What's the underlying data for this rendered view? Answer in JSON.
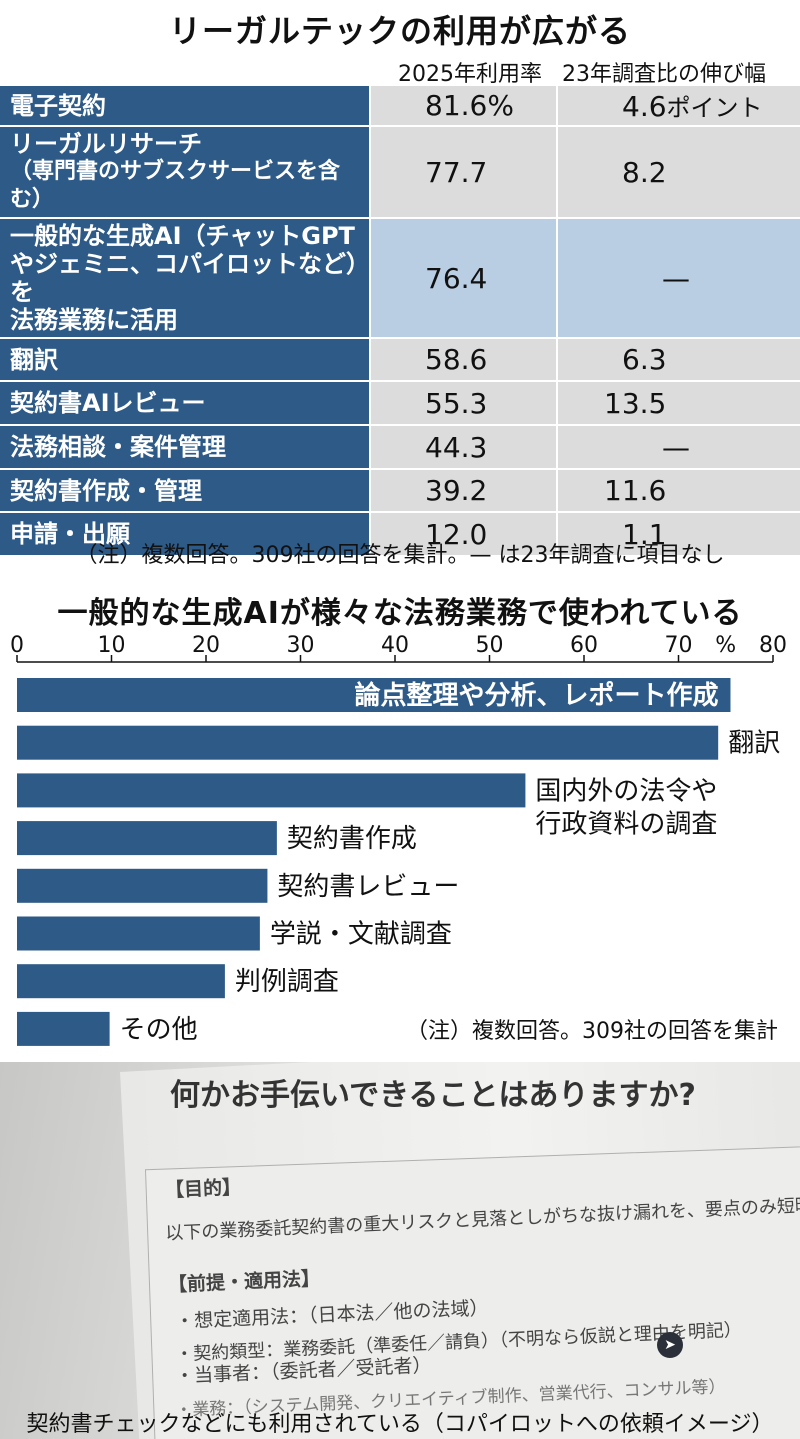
{
  "table": {
    "title": "リーガルテックの利用が広がる",
    "col1_header": "2025年利用率",
    "col2_header": "23年調査比の伸び幅",
    "rows": [
      {
        "label": "電子契約",
        "rate": "81.6%",
        "growth": "4.6",
        "growth_unit": "ポイント"
      },
      {
        "label": "リーガルリサーチ\n（専門書のサブスクサービスを含む）",
        "rate": "77.7",
        "growth": "8.2",
        "growth_unit": ""
      },
      {
        "label": "一般的な生成AI（チャットGPT\nやジェミニ、コパイロットなど）を\n法務業務に活用",
        "rate": "76.4",
        "growth": "—",
        "growth_unit": "",
        "highlight": true
      },
      {
        "label": "翻訳",
        "rate": "58.6",
        "growth": "6.3",
        "growth_unit": ""
      },
      {
        "label": "契約書AIレビュー",
        "rate": "55.3",
        "growth": "13.5",
        "growth_unit": ""
      },
      {
        "label": "法務相談・案件管理",
        "rate": "44.3",
        "growth": "—",
        "growth_unit": ""
      },
      {
        "label": "契約書作成・管理",
        "rate": "39.2",
        "growth": "11.6",
        "growth_unit": ""
      },
      {
        "label": "申請・出願",
        "rate": "12.0",
        "growth": "1.1",
        "growth_unit": ""
      }
    ],
    "note": "（注）複数回答。309社の回答を集計。— は23年調査に項目なし"
  },
  "chart_data": {
    "type": "bar",
    "orientation": "horizontal",
    "title": "一般的な生成AIが様々な法務業務で使われている",
    "unit": "%",
    "xlim": [
      0,
      80
    ],
    "ticks": [
      0,
      10,
      20,
      30,
      40,
      50,
      60,
      70,
      80
    ],
    "bar_color": "#2d5a87",
    "categories": [
      "論点整理や分析、レポート作成",
      "翻訳",
      "国内外の法令や\n行政資料の調査",
      "契約書作成",
      "契約書レビュー",
      "学説・文献調査",
      "判例調査",
      "その他"
    ],
    "values": [
      75.5,
      74.2,
      53.8,
      27.5,
      26.5,
      25.7,
      22.0,
      9.8
    ],
    "label_inside": [
      true,
      false,
      false,
      false,
      false,
      false,
      false,
      false
    ],
    "note": "（注）複数回答。309社の回答を集計"
  },
  "photo": {
    "prompt_heading": "何かお手伝いできることはありますか?",
    "lines": [
      "【目的】",
      "以下の業務委託契約書の重大リスクと見落としがちな抜け漏れを、要点のみ短時間で確認したい。",
      "【前提・適用法】",
      "・想定適用法：（日本法／他の法域）",
      "・契約類型：業務委託（準委任／請負）（不明なら仮説と理由を明記）",
      "・当事者：（委託者／受託者）",
      "・業務：（システム開発、クリエイティブ制作、営業代行、コンサル等）"
    ],
    "caption": "契約書チェックなどにも利用されている（コパイロットへの依頼イメージ）"
  }
}
